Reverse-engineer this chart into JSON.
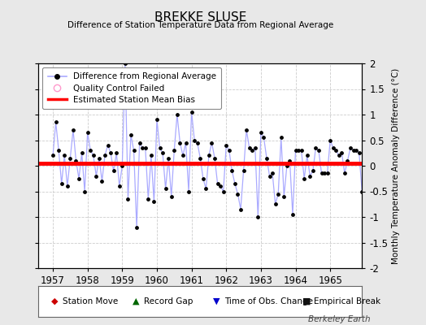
{
  "title": "BREKKE SLUSE",
  "subtitle": "Difference of Station Temperature Data from Regional Average",
  "ylabel": "Monthly Temperature Anomaly Difference (°C)",
  "xlabel_years": [
    1957,
    1958,
    1959,
    1960,
    1961,
    1962,
    1963,
    1964,
    1965
  ],
  "ylim": [
    -2,
    2
  ],
  "xlim_start": 1956.58,
  "xlim_end": 1965.92,
  "bias_value": 0.04,
  "line_color": "#4444cc",
  "line_color_light": "#aaaaff",
  "marker_color": "#000000",
  "bias_color": "#ff0000",
  "background_color": "#e8e8e8",
  "plot_bg_color": "#ffffff",
  "watermark": "Berkeley Earth",
  "values": [
    0.2,
    0.85,
    0.3,
    -0.35,
    0.2,
    -0.4,
    0.15,
    0.7,
    0.1,
    -0.25,
    0.25,
    -0.5,
    0.65,
    0.3,
    0.2,
    -0.2,
    0.15,
    -0.3,
    0.2,
    0.4,
    0.25,
    -0.1,
    0.25,
    -0.4,
    0.0,
    2.0,
    -0.65,
    0.6,
    0.3,
    -1.2,
    0.45,
    0.35,
    0.35,
    -0.65,
    0.2,
    -0.7,
    0.9,
    0.35,
    0.25,
    -0.45,
    0.15,
    -0.6,
    0.3,
    1.0,
    0.45,
    0.2,
    0.45,
    -0.5,
    1.05,
    0.5,
    0.45,
    0.15,
    -0.25,
    -0.45,
    0.2,
    0.45,
    0.15,
    -0.35,
    -0.4,
    -0.5,
    0.4,
    0.3,
    -0.1,
    -0.35,
    -0.55,
    -0.85,
    -0.1,
    0.7,
    0.35,
    0.3,
    0.35,
    -1.0,
    0.65,
    0.55,
    0.15,
    -0.2,
    -0.15,
    -0.75,
    -0.55,
    0.55,
    -0.6,
    0.0,
    0.1,
    -0.95,
    0.3,
    0.3,
    0.3,
    -0.25,
    0.2,
    -0.2,
    -0.1,
    0.35,
    0.3,
    -0.15,
    -0.15,
    -0.15,
    0.5,
    0.35,
    0.3,
    0.2,
    0.25,
    -0.15,
    0.1,
    0.35,
    0.3,
    0.3,
    0.25,
    -0.5
  ],
  "start_year": 1957,
  "start_month": 1,
  "yticks": [
    -2,
    -1.5,
    -1,
    -0.5,
    0,
    0.5,
    1,
    1.5,
    2
  ],
  "ytick_labels": [
    "-2",
    "-1.5",
    "-1",
    "-0.5",
    "0",
    "0.5",
    "1",
    "1.5",
    "2"
  ]
}
